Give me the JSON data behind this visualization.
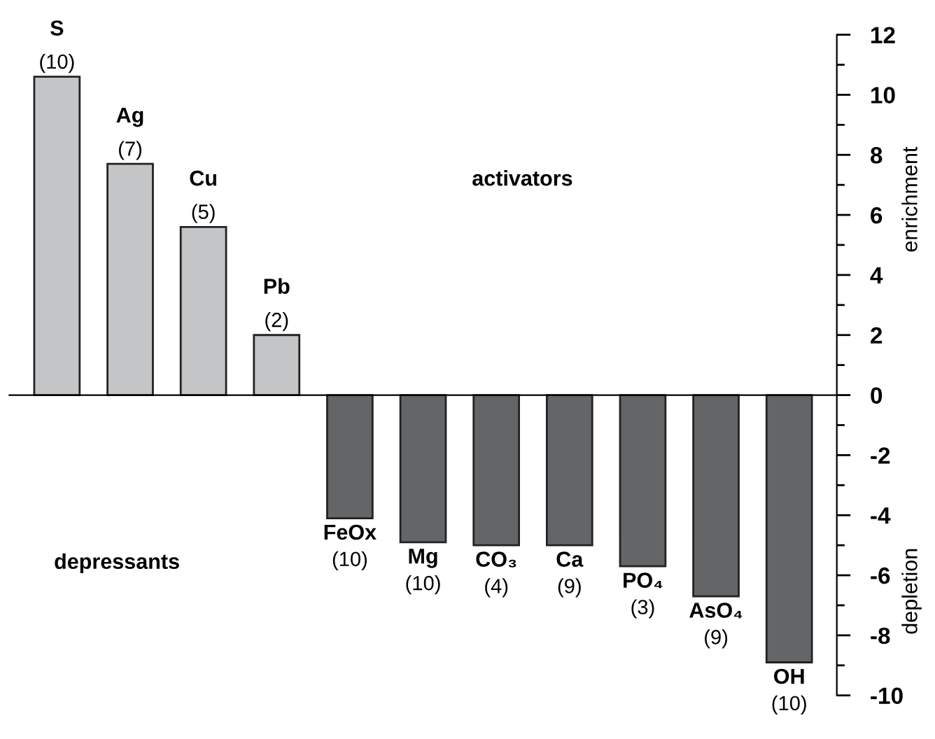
{
  "chart_data": {
    "type": "bar",
    "categories": [
      "S",
      "Ag",
      "Cu",
      "Pb",
      "FeOx",
      "Mg",
      "CO₃",
      "Ca",
      "PO₄",
      "AsO₄",
      "OH"
    ],
    "values": [
      10.6,
      7.7,
      5.6,
      2.0,
      -4.1,
      -4.9,
      -5.0,
      -5.0,
      -5.7,
      -6.7,
      -8.9
    ],
    "colors": [
      "#c4c5c7",
      "#c4c5c7",
      "#c4c5c7",
      "#c4c5c7",
      "#646567",
      "#646567",
      "#646567",
      "#646567",
      "#646567",
      "#646567",
      "#646567"
    ],
    "ylabel": "enrichment",
    "y2label": "depletion",
    "annotations": [
      "activators",
      "depressants",
      {
        "text": "(10)",
        "x": "S",
        "y": 10.6
      },
      {
        "text": "(7)",
        "x": "Ag",
        "y": 7.7
      },
      {
        "text": "(5)",
        "x": "Cu",
        "y": 5.6
      },
      {
        "text": "(2)",
        "x": "Pb",
        "y": 2.0
      },
      {
        "text": "(10)",
        "x": "FeOx",
        "y": -4.1
      },
      {
        "text": "(10)",
        "x": "Mg",
        "y": -4.9
      },
      {
        "text": "(4)",
        "x": "CO₃",
        "y": -5.0
      },
      {
        "text": "(9)",
        "x": "Ca",
        "y": -5.0
      },
      {
        "text": "(3)",
        "x": "PO₄",
        "y": -5.7
      },
      {
        "text": "(9)",
        "x": "AsO₄",
        "y": -6.7
      },
      {
        "text": "(10)",
        "x": "OH",
        "y": -8.9
      }
    ],
    "ylim": [
      -10,
      12
    ],
    "yticks": [
      -10,
      -8,
      -6,
      -4,
      -2,
      0,
      2,
      4,
      6,
      8,
      10,
      12
    ]
  }
}
